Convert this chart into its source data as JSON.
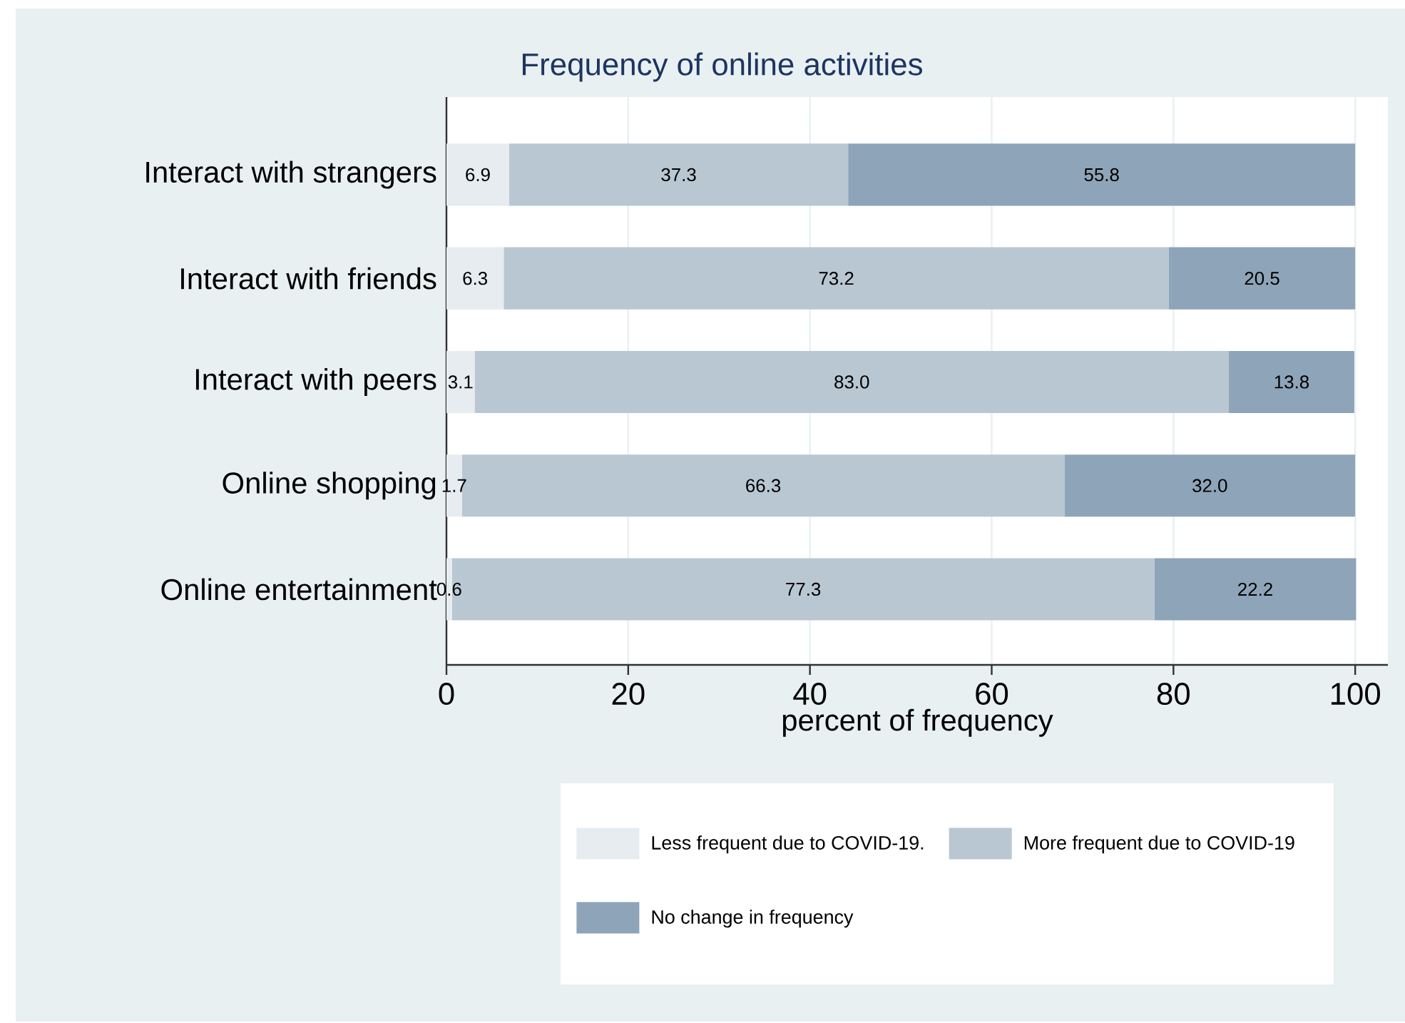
{
  "chart_data": {
    "type": "bar",
    "orientation": "horizontal",
    "stacked": true,
    "title": "Frequency of online activities",
    "xlabel": "percent of frequency",
    "categories": [
      "Interact with strangers",
      "Interact with friends",
      "Interact with peers",
      "Online shopping",
      "Online entertainment"
    ],
    "series": [
      {
        "name": "Less frequent due to COVID-19.",
        "color": "#e6ecf0",
        "values": [
          6.9,
          6.3,
          3.1,
          1.7,
          0.6
        ],
        "value_labels": [
          "6.9",
          "6.3",
          "3.1",
          "1.7",
          "0.6"
        ]
      },
      {
        "name": "More frequent due to COVID-19",
        "color": "#b9c7d2",
        "values": [
          37.3,
          73.2,
          83.0,
          66.3,
          77.3
        ],
        "value_labels": [
          "37.3",
          "73.2",
          "83.0",
          "66.3",
          "77.3"
        ]
      },
      {
        "name": "No change in frequency",
        "color": "#8ea4b8",
        "values": [
          55.8,
          20.5,
          13.8,
          32.0,
          22.2
        ],
        "value_labels": [
          "55.8",
          "20.5",
          "13.8",
          "32.0",
          "22.2"
        ]
      }
    ],
    "xlim": [
      0,
      103.6
    ],
    "xticks": [
      0,
      20,
      40,
      60,
      80,
      100
    ],
    "grid": "x",
    "legend": "bottom"
  }
}
